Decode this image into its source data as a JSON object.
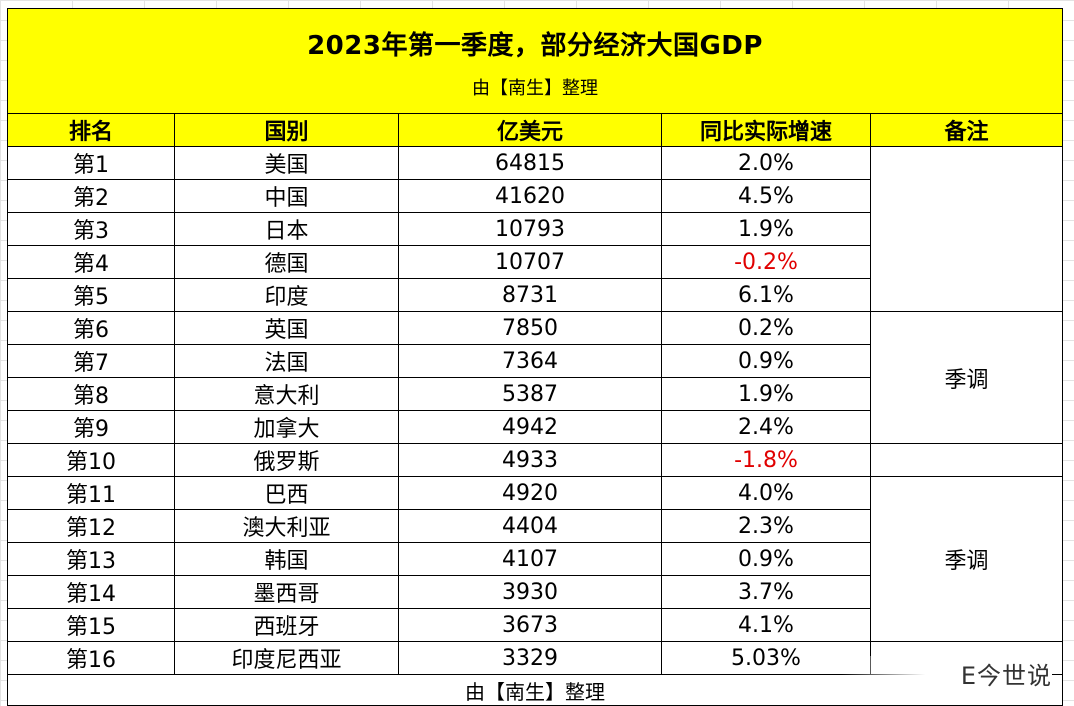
{
  "title": "2023年第一季度，部分经济大国GDP",
  "subtitle": "由【南生】整理",
  "headers": [
    "排名",
    "国别",
    "亿美元",
    "同比实际增速",
    "备注"
  ],
  "rows": [
    {
      "rank": "第1",
      "country": "美国",
      "gdp": "64815",
      "growth": "2.0%",
      "neg": false
    },
    {
      "rank": "第2",
      "country": "中国",
      "gdp": "41620",
      "growth": "4.5%",
      "neg": false
    },
    {
      "rank": "第3",
      "country": "日本",
      "gdp": "10793",
      "growth": "1.9%",
      "neg": false
    },
    {
      "rank": "第4",
      "country": "德国",
      "gdp": "10707",
      "growth": "-0.2%",
      "neg": true
    },
    {
      "rank": "第5",
      "country": "印度",
      "gdp": "8731",
      "growth": "6.1%",
      "neg": false
    },
    {
      "rank": "第6",
      "country": "英国",
      "gdp": "7850",
      "growth": "0.2%",
      "neg": false
    },
    {
      "rank": "第7",
      "country": "法国",
      "gdp": "7364",
      "growth": "0.9%",
      "neg": false
    },
    {
      "rank": "第8",
      "country": "意大利",
      "gdp": "5387",
      "growth": "1.9%",
      "neg": false
    },
    {
      "rank": "第9",
      "country": "加拿大",
      "gdp": "4942",
      "growth": "2.4%",
      "neg": false
    },
    {
      "rank": "第10",
      "country": "俄罗斯",
      "gdp": "4933",
      "growth": "-1.8%",
      "neg": true
    },
    {
      "rank": "第11",
      "country": "巴西",
      "gdp": "4920",
      "growth": "4.0%",
      "neg": false
    },
    {
      "rank": "第12",
      "country": "澳大利亚",
      "gdp": "4404",
      "growth": "2.3%",
      "neg": false
    },
    {
      "rank": "第13",
      "country": "韩国",
      "gdp": "4107",
      "growth": "0.9%",
      "neg": false
    },
    {
      "rank": "第14",
      "country": "墨西哥",
      "gdp": "3930",
      "growth": "3.7%",
      "neg": false
    },
    {
      "rank": "第15",
      "country": "西班牙",
      "gdp": "3673",
      "growth": "4.1%",
      "neg": false
    },
    {
      "rank": "第16",
      "country": "印度尼西亚",
      "gdp": "3329",
      "growth": "5.03%",
      "neg": false
    }
  ],
  "notes": [
    {
      "start": 0,
      "span": 5,
      "text": ""
    },
    {
      "start": 5,
      "span": 4,
      "text": "季调"
    },
    {
      "start": 9,
      "span": 1,
      "text": ""
    },
    {
      "start": 10,
      "span": 5,
      "text": "季调"
    },
    {
      "start": 15,
      "span": 1,
      "text": ""
    }
  ],
  "footer": "由【南生】整理",
  "watermark": "E今世说",
  "colors": {
    "header_bg": "#ffff00",
    "negative": "#e00000"
  }
}
